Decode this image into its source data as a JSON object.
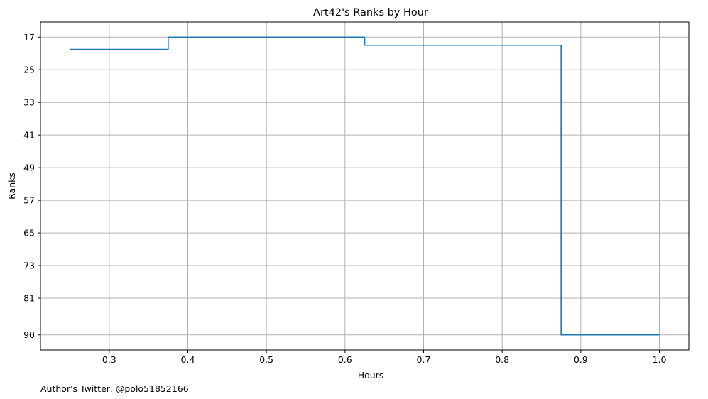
{
  "chart_data": {
    "type": "line",
    "drawstyle": "steps-post",
    "title": "Art42's Ranks by Hour",
    "xlabel": "Hours",
    "ylabel": "Ranks",
    "xlim": [
      0.2125,
      1.0375
    ],
    "ylim": [
      93.7,
      13.3
    ],
    "y_inverted": true,
    "grid": true,
    "x_ticks": [
      0.3,
      0.4,
      0.5,
      0.6,
      0.7,
      0.8,
      0.9,
      1.0
    ],
    "x_tick_labels": [
      "0.3",
      "0.4",
      "0.5",
      "0.6",
      "0.7",
      "0.8",
      "0.9",
      "1.0"
    ],
    "y_ticks": [
      17,
      25,
      33,
      41,
      49,
      57,
      65,
      73,
      81,
      90
    ],
    "y_tick_labels": [
      "17",
      "25",
      "33",
      "41",
      "49",
      "57",
      "65",
      "73",
      "81",
      "90"
    ],
    "series": [
      {
        "color": "#1f77b4",
        "x": [
          0.25,
          0.375,
          0.625,
          0.875,
          1.0
        ],
        "y": [
          20,
          17,
          19,
          90,
          90
        ]
      }
    ]
  },
  "footer": {
    "text": "Author's Twitter: @polo51852166"
  },
  "colors": {
    "grid": "#b0b0b0",
    "axes": "#000000",
    "line": "#1f77b4"
  }
}
